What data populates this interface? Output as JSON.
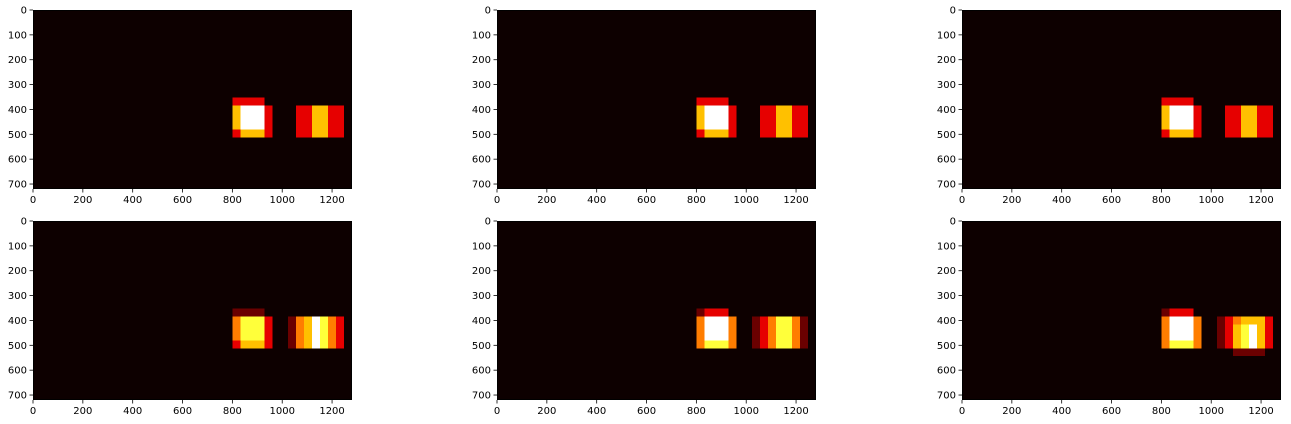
{
  "chart_data": {
    "type": "heatmap",
    "grid": false,
    "colormap": [
      "#000000",
      "#6a0000",
      "#e60000",
      "#ff7d00",
      "#ffc000",
      "#ffff3a",
      "#ffffff"
    ],
    "background_color": "#0d0000",
    "xlim": [
      0,
      1280
    ],
    "ylim": [
      720,
      0
    ],
    "xticks": [
      0,
      200,
      400,
      600,
      800,
      1000,
      1200
    ],
    "yticks": [
      0,
      100,
      200,
      300,
      400,
      500,
      600,
      700
    ],
    "panels": [
      {
        "cells": [
          {
            "x": [
              800,
              928
            ],
            "y": [
              352,
              384
            ],
            "value": 2
          },
          {
            "x": [
              800,
              832
            ],
            "y": [
              384,
              480
            ],
            "value": 4
          },
          {
            "x": [
              832,
              928
            ],
            "y": [
              384,
              480
            ],
            "value": 6
          },
          {
            "x": [
              800,
              832
            ],
            "y": [
              480,
              512
            ],
            "value": 2
          },
          {
            "x": [
              832,
              928
            ],
            "y": [
              480,
              512
            ],
            "value": 4
          },
          {
            "x": [
              928,
              960
            ],
            "y": [
              384,
              512
            ],
            "value": 2
          },
          {
            "x": [
              1056,
              1120
            ],
            "y": [
              384,
              512
            ],
            "value": 2
          },
          {
            "x": [
              1120,
              1184
            ],
            "y": [
              384,
              512
            ],
            "value": 4
          },
          {
            "x": [
              1184,
              1248
            ],
            "y": [
              384,
              512
            ],
            "value": 2
          }
        ]
      },
      {
        "cells": [
          {
            "x": [
              800,
              928
            ],
            "y": [
              352,
              384
            ],
            "value": 2
          },
          {
            "x": [
              800,
              832
            ],
            "y": [
              384,
              480
            ],
            "value": 4
          },
          {
            "x": [
              832,
              928
            ],
            "y": [
              384,
              480
            ],
            "value": 6
          },
          {
            "x": [
              800,
              832
            ],
            "y": [
              480,
              512
            ],
            "value": 2
          },
          {
            "x": [
              832,
              928
            ],
            "y": [
              480,
              512
            ],
            "value": 4
          },
          {
            "x": [
              928,
              960
            ],
            "y": [
              384,
              512
            ],
            "value": 2
          },
          {
            "x": [
              1056,
              1120
            ],
            "y": [
              384,
              512
            ],
            "value": 2
          },
          {
            "x": [
              1120,
              1184
            ],
            "y": [
              384,
              512
            ],
            "value": 4
          },
          {
            "x": [
              1184,
              1248
            ],
            "y": [
              384,
              512
            ],
            "value": 2
          }
        ]
      },
      {
        "cells": [
          {
            "x": [
              800,
              928
            ],
            "y": [
              352,
              384
            ],
            "value": 2
          },
          {
            "x": [
              800,
              832
            ],
            "y": [
              384,
              480
            ],
            "value": 4
          },
          {
            "x": [
              832,
              928
            ],
            "y": [
              384,
              480
            ],
            "value": 6
          },
          {
            "x": [
              800,
              832
            ],
            "y": [
              480,
              512
            ],
            "value": 2
          },
          {
            "x": [
              832,
              928
            ],
            "y": [
              480,
              512
            ],
            "value": 4
          },
          {
            "x": [
              928,
              960
            ],
            "y": [
              384,
              512
            ],
            "value": 2
          },
          {
            "x": [
              1056,
              1120
            ],
            "y": [
              384,
              512
            ],
            "value": 2
          },
          {
            "x": [
              1120,
              1184
            ],
            "y": [
              384,
              512
            ],
            "value": 4
          },
          {
            "x": [
              1184,
              1248
            ],
            "y": [
              384,
              512
            ],
            "value": 2
          }
        ]
      },
      {
        "cells": [
          {
            "x": [
              800,
              928
            ],
            "y": [
              352,
              384
            ],
            "value": 1
          },
          {
            "x": [
              800,
              832
            ],
            "y": [
              384,
              480
            ],
            "value": 3
          },
          {
            "x": [
              832,
              928
            ],
            "y": [
              384,
              480
            ],
            "value": 5
          },
          {
            "x": [
              800,
              832
            ],
            "y": [
              480,
              512
            ],
            "value": 2
          },
          {
            "x": [
              832,
              928
            ],
            "y": [
              480,
              512
            ],
            "value": 4
          },
          {
            "x": [
              928,
              960
            ],
            "y": [
              384,
              512
            ],
            "value": 2
          },
          {
            "x": [
              1024,
              1056
            ],
            "y": [
              384,
              512
            ],
            "value": 1
          },
          {
            "x": [
              1056,
              1088
            ],
            "y": [
              384,
              512
            ],
            "value": 3
          },
          {
            "x": [
              1088,
              1120
            ],
            "y": [
              384,
              512
            ],
            "value": 4
          },
          {
            "x": [
              1120,
              1152
            ],
            "y": [
              384,
              512
            ],
            "value": 6
          },
          {
            "x": [
              1152,
              1184
            ],
            "y": [
              384,
              512
            ],
            "value": 5
          },
          {
            "x": [
              1184,
              1216
            ],
            "y": [
              384,
              512
            ],
            "value": 3
          },
          {
            "x": [
              1216,
              1248
            ],
            "y": [
              384,
              512
            ],
            "value": 2
          }
        ]
      },
      {
        "cells": [
          {
            "x": [
              800,
              832
            ],
            "y": [
              352,
              384
            ],
            "value": 1
          },
          {
            "x": [
              832,
              928
            ],
            "y": [
              352,
              384
            ],
            "value": 2
          },
          {
            "x": [
              800,
              832
            ],
            "y": [
              384,
              480
            ],
            "value": 3
          },
          {
            "x": [
              832,
              928
            ],
            "y": [
              384,
              480
            ],
            "value": 6
          },
          {
            "x": [
              800,
              832
            ],
            "y": [
              480,
              512
            ],
            "value": 3
          },
          {
            "x": [
              832,
              928
            ],
            "y": [
              480,
              512
            ],
            "value": 5
          },
          {
            "x": [
              928,
              960
            ],
            "y": [
              384,
              512
            ],
            "value": 3
          },
          {
            "x": [
              1024,
              1056
            ],
            "y": [
              384,
              512
            ],
            "value": 1
          },
          {
            "x": [
              1056,
              1088
            ],
            "y": [
              384,
              512
            ],
            "value": 2
          },
          {
            "x": [
              1088,
              1120
            ],
            "y": [
              384,
              512
            ],
            "value": 3
          },
          {
            "x": [
              1120,
              1152
            ],
            "y": [
              384,
              512
            ],
            "value": 5
          },
          {
            "x": [
              1152,
              1184
            ],
            "y": [
              384,
              512
            ],
            "value": 5
          },
          {
            "x": [
              1184,
              1216
            ],
            "y": [
              384,
              512
            ],
            "value": 3
          },
          {
            "x": [
              1216,
              1248
            ],
            "y": [
              384,
              512
            ],
            "value": 1
          }
        ]
      },
      {
        "cells": [
          {
            "x": [
              800,
              832
            ],
            "y": [
              352,
              384
            ],
            "value": 1
          },
          {
            "x": [
              832,
              928
            ],
            "y": [
              352,
              384
            ],
            "value": 2
          },
          {
            "x": [
              800,
              832
            ],
            "y": [
              384,
              480
            ],
            "value": 3
          },
          {
            "x": [
              832,
              928
            ],
            "y": [
              384,
              480
            ],
            "value": 6
          },
          {
            "x": [
              800,
              832
            ],
            "y": [
              480,
              512
            ],
            "value": 3
          },
          {
            "x": [
              832,
              928
            ],
            "y": [
              480,
              512
            ],
            "value": 5
          },
          {
            "x": [
              928,
              960
            ],
            "y": [
              384,
              512
            ],
            "value": 3
          },
          {
            "x": [
              1024,
              1056
            ],
            "y": [
              384,
              512
            ],
            "value": 1
          },
          {
            "x": [
              1056,
              1088
            ],
            "y": [
              384,
              512
            ],
            "value": 2
          },
          {
            "x": [
              1088,
              1120
            ],
            "y": [
              384,
              416
            ],
            "value": 3
          },
          {
            "x": [
              1120,
              1184
            ],
            "y": [
              384,
              416
            ],
            "value": 4
          },
          {
            "x": [
              1088,
              1120
            ],
            "y": [
              416,
              512
            ],
            "value": 4
          },
          {
            "x": [
              1120,
              1152
            ],
            "y": [
              416,
              512
            ],
            "value": 5
          },
          {
            "x": [
              1152,
              1184
            ],
            "y": [
              416,
              512
            ],
            "value": 6
          },
          {
            "x": [
              1184,
              1216
            ],
            "y": [
              384,
              512
            ],
            "value": 4
          },
          {
            "x": [
              1216,
              1248
            ],
            "y": [
              384,
              512
            ],
            "value": 2
          },
          {
            "x": [
              1088,
              1216
            ],
            "y": [
              512,
              544
            ],
            "value": 1
          }
        ]
      }
    ]
  }
}
